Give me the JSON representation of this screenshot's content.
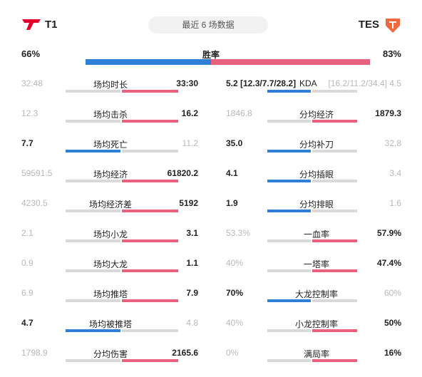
{
  "header": {
    "team_left": "T1",
    "team_right": "TES",
    "center_label": "最近 6 场数据"
  },
  "win_rate": {
    "label": "胜率",
    "left": "66%",
    "right": "83%"
  },
  "colors": {
    "blue": "#2f7fd6",
    "pink": "#e8627f",
    "gray": "#d9d9d9",
    "t1_red": "#e2012d",
    "tes_orange": "#f0683c"
  },
  "left_rows": [
    {
      "name": "场均时长",
      "t1": "32:48",
      "tes": "33:30",
      "winner": "right"
    },
    {
      "name": "场均击杀",
      "t1": "12.3",
      "tes": "16.2",
      "winner": "right"
    },
    {
      "name": "场均死亡",
      "t1": "7.7",
      "tes": "11.2",
      "winner": "left"
    },
    {
      "name": "场均经济",
      "t1": "59591.5",
      "tes": "61820.2",
      "winner": "right"
    },
    {
      "name": "场均经济差",
      "t1": "4230.5",
      "tes": "5192",
      "winner": "right"
    },
    {
      "name": "场均小龙",
      "t1": "2.1",
      "tes": "3.1",
      "winner": "right"
    },
    {
      "name": "场均大龙",
      "t1": "0.9",
      "tes": "1.1",
      "winner": "right"
    },
    {
      "name": "场均推塔",
      "t1": "6.9",
      "tes": "7.9",
      "winner": "right"
    },
    {
      "name": "场均被推塔",
      "t1": "4.7",
      "tes": "4.8",
      "winner": "left"
    },
    {
      "name": "分均伤害",
      "t1": "1798.9",
      "tes": "2165.6",
      "winner": "right"
    }
  ],
  "right_rows": [
    {
      "name": "KDA",
      "t1": "5.2 [12.3/7.7/28.2]",
      "tes": "[16.2/11.2/34.4] 4.5",
      "winner": "left"
    },
    {
      "name": "分均经济",
      "t1": "1846.8",
      "tes": "1879.3",
      "winner": "right"
    },
    {
      "name": "分均补刀",
      "t1": "35.0",
      "tes": "32.8",
      "winner": "left"
    },
    {
      "name": "分均插眼",
      "t1": "4.1",
      "tes": "3.4",
      "winner": "left"
    },
    {
      "name": "分均排眼",
      "t1": "1.9",
      "tes": "1.6",
      "winner": "left"
    },
    {
      "name": "一血率",
      "t1": "53.3%",
      "tes": "57.9%",
      "winner": "right"
    },
    {
      "name": "一塔率",
      "t1": "40%",
      "tes": "47.4%",
      "winner": "right"
    },
    {
      "name": "大龙控制率",
      "t1": "70%",
      "tes": "60%",
      "winner": "left"
    },
    {
      "name": "小龙控制率",
      "t1": "40%",
      "tes": "50%",
      "winner": "right"
    },
    {
      "name": "满局率",
      "t1": "0%",
      "tes": "16%",
      "winner": "right"
    }
  ]
}
